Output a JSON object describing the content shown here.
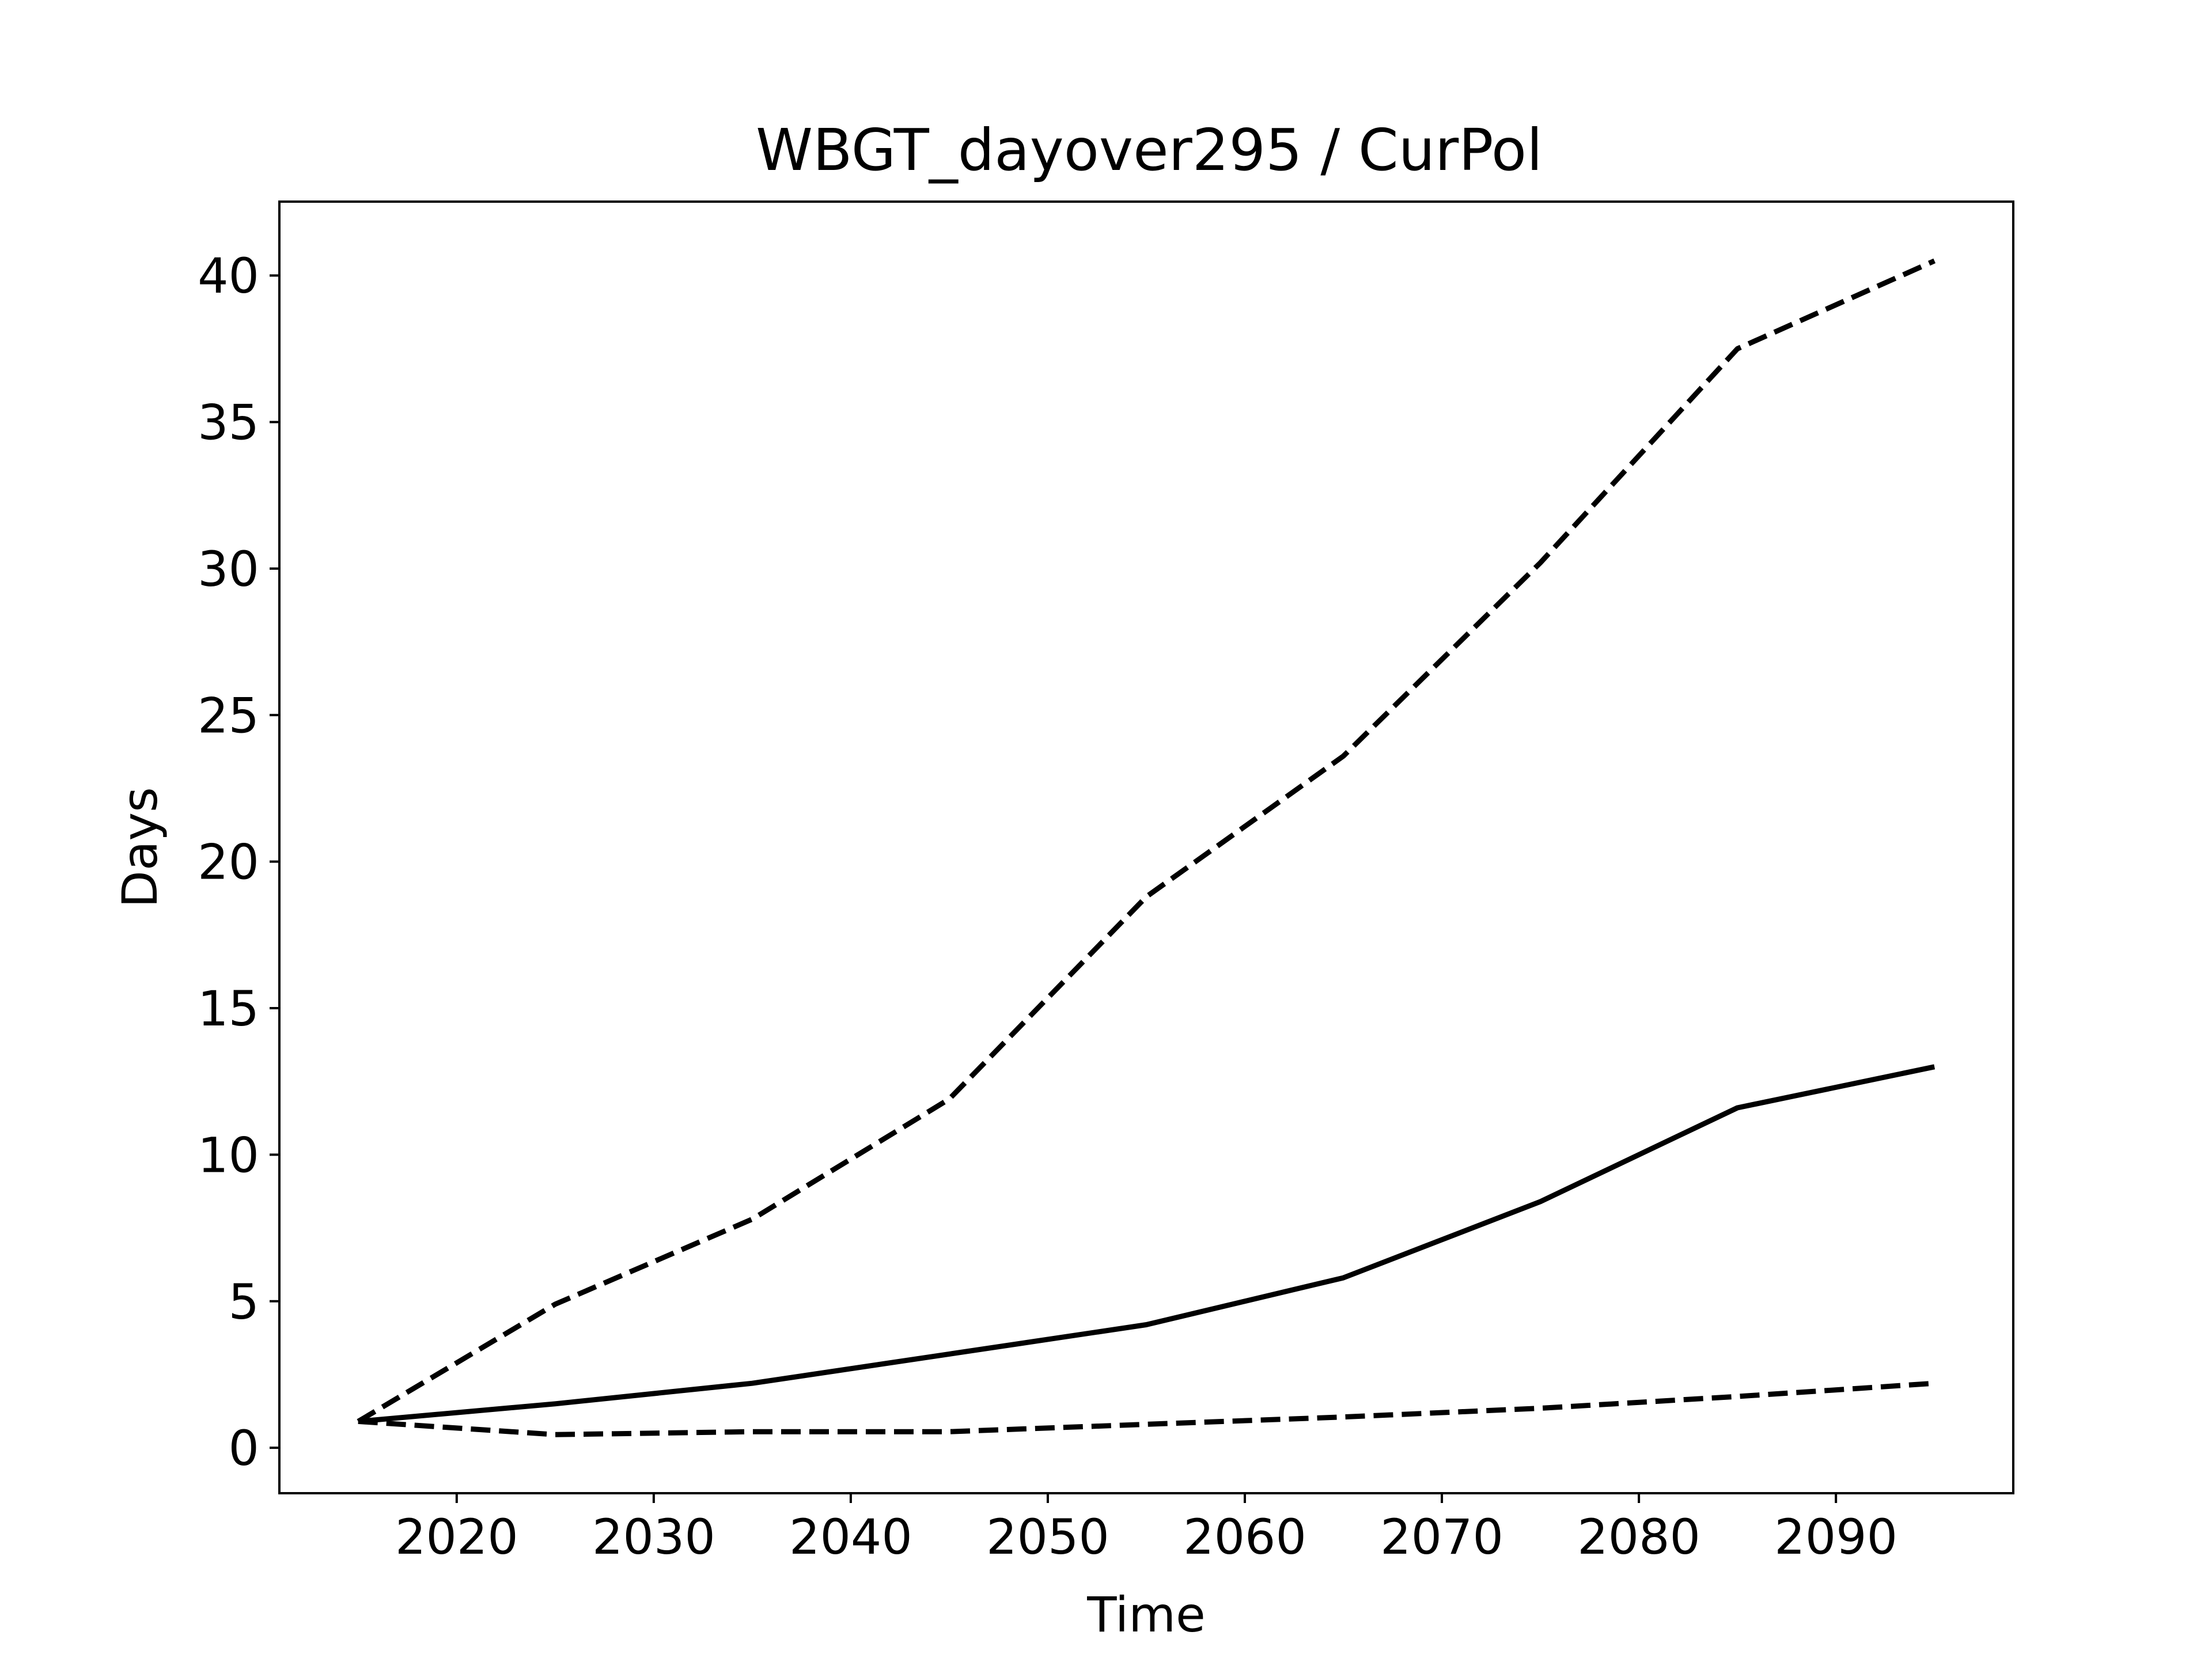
{
  "chart_data": {
    "type": "line",
    "title": "WBGT_dayover295 / CurPol",
    "xlabel": "Time",
    "ylabel": "Days",
    "x": [
      2015,
      2025,
      2035,
      2045,
      2055,
      2065,
      2075,
      2085,
      2095
    ],
    "series": [
      {
        "style": "solid",
        "color": "#000000",
        "values": [
          0.9,
          1.5,
          2.2,
          3.2,
          4.2,
          5.8,
          8.4,
          11.6,
          13.0
        ]
      },
      {
        "style": "dashed",
        "color": "#000000",
        "values": [
          0.9,
          4.9,
          7.8,
          11.9,
          18.8,
          23.6,
          30.2,
          37.5,
          40.5
        ]
      },
      {
        "style": "dashed",
        "color": "#000000",
        "values": [
          0.9,
          0.45,
          0.55,
          0.55,
          0.8,
          1.05,
          1.35,
          1.75,
          2.2
        ]
      }
    ],
    "xlim": [
      2011,
      2099
    ],
    "ylim": [
      -1.55,
      42.52
    ],
    "xticks": [
      "2020",
      "2030",
      "2040",
      "2050",
      "2060",
      "2070",
      "2080",
      "2090"
    ],
    "yticks": [
      "0",
      "5",
      "10",
      "15",
      "20",
      "25",
      "30",
      "35",
      "40"
    ],
    "grid": false,
    "legend": "none"
  }
}
